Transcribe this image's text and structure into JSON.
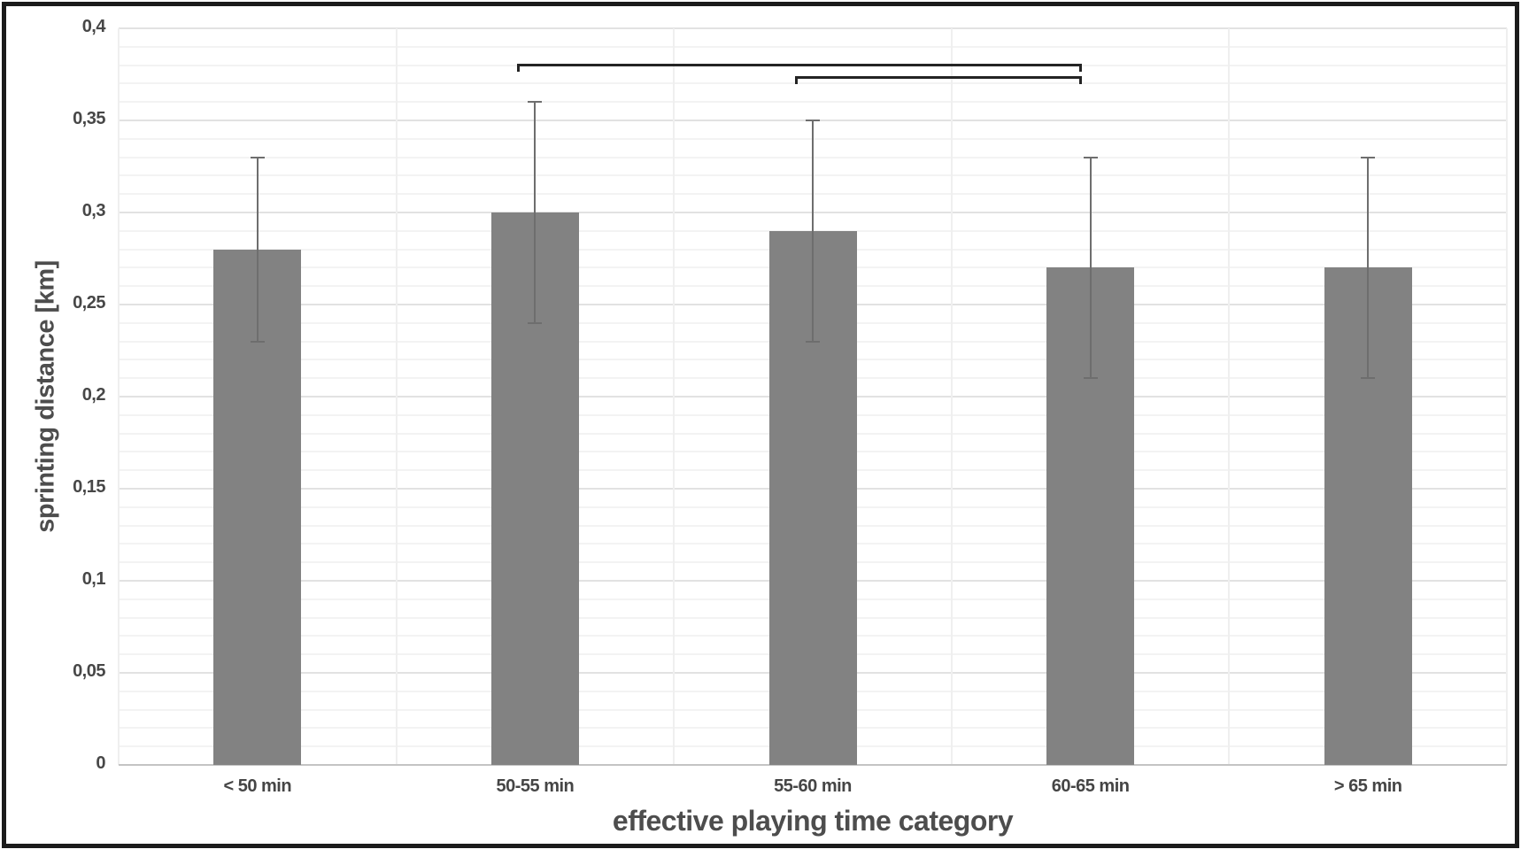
{
  "chart_data": {
    "type": "bar",
    "title": "",
    "xlabel": "effective playing time category",
    "ylabel": "sprinting distance [km]",
    "categories": [
      "< 50 min",
      "50-55 min",
      "55-60 min",
      "60-65 min",
      "> 65 min"
    ],
    "values": [
      0.28,
      0.3,
      0.29,
      0.27,
      0.27
    ],
    "error_low": [
      0.23,
      0.24,
      0.23,
      0.21,
      0.21
    ],
    "error_high": [
      0.33,
      0.36,
      0.35,
      0.33,
      0.33
    ],
    "ylim": [
      0,
      0.4
    ],
    "y_major_step": 0.05,
    "y_minor_step": 0.01,
    "y_tick_labels": [
      "0",
      "0,05",
      "0,1",
      "0,15",
      "0,2",
      "0,25",
      "0,3",
      "0,35",
      "0,4"
    ],
    "grid": true,
    "legend": "none",
    "bar_color": "#828282",
    "error_bar_color": "#6e6e6e",
    "bracket_color": "#242424",
    "significance_brackets": [
      {
        "from": "50-55 min",
        "to": "60-65 min",
        "level": 0.381
      },
      {
        "from": "55-60 min",
        "to": "60-65 min",
        "level": 0.374
      }
    ]
  }
}
